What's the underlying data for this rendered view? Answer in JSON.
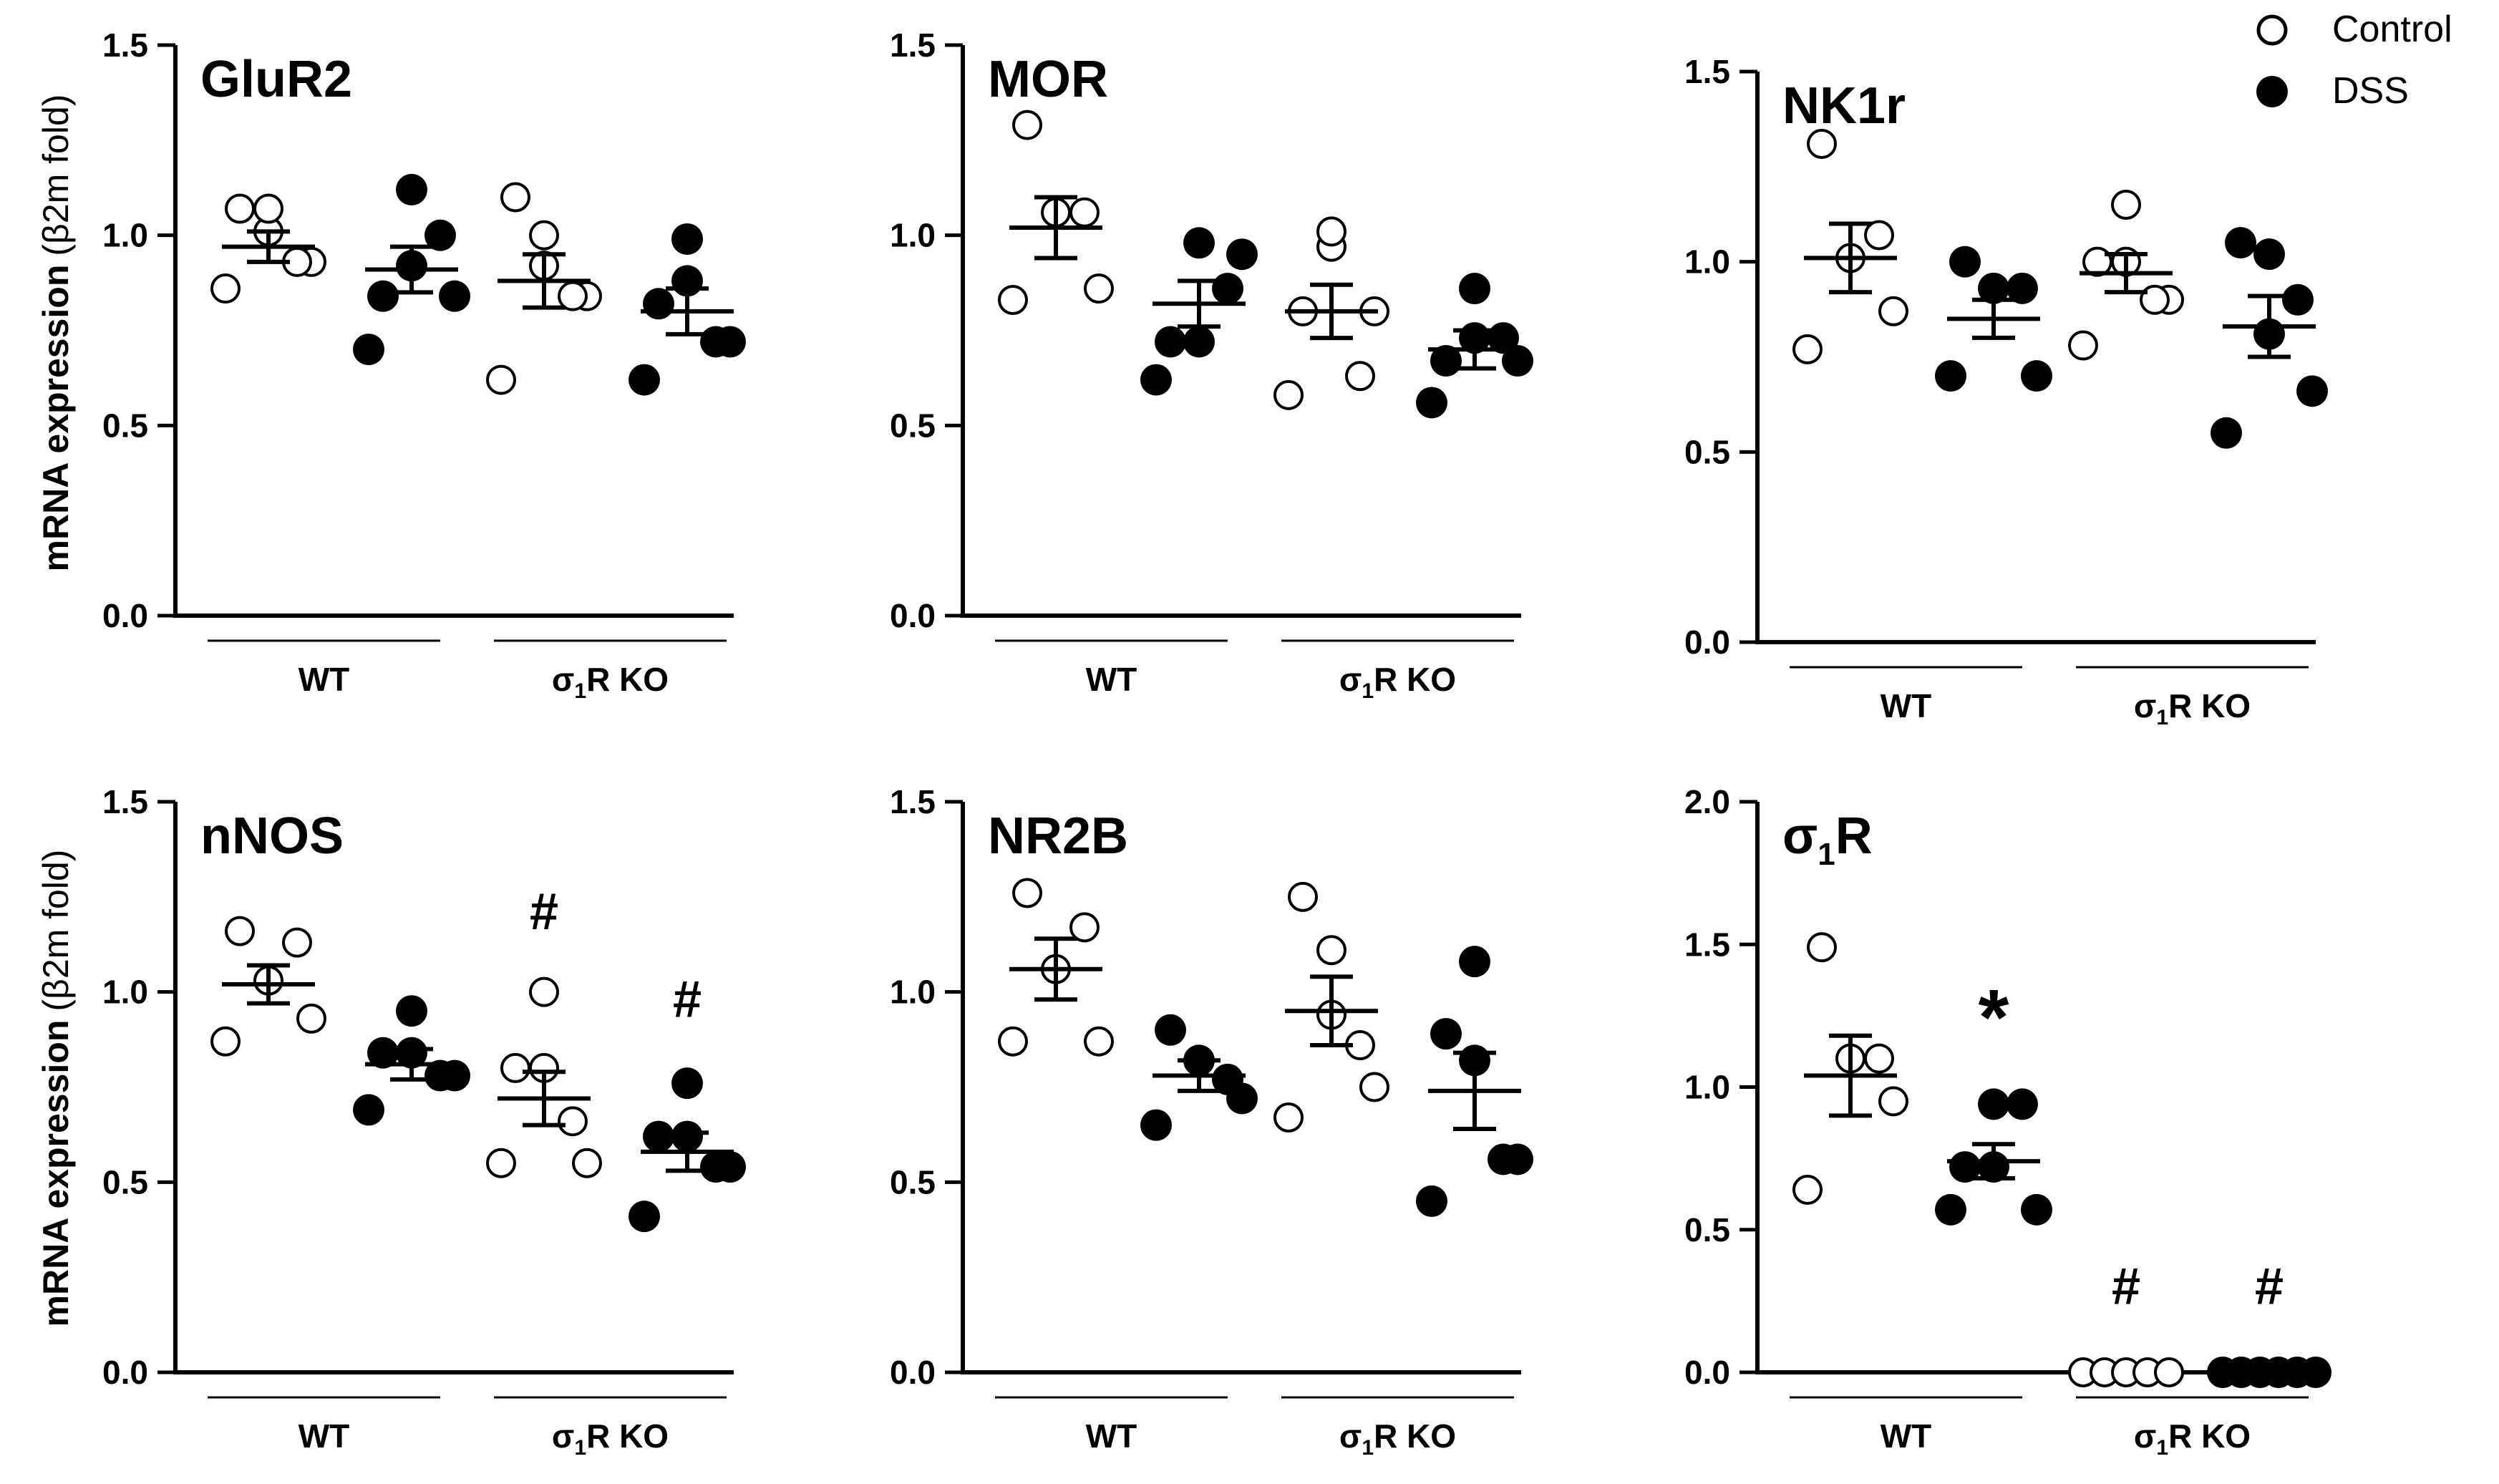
{
  "figure": {
    "ylabel_main": "mRNA expression",
    "ylabel_unit": "(β2m fold)",
    "legend": [
      {
        "label": "Control",
        "marker": "open-circle"
      },
      {
        "label": "DSS",
        "marker": "filled-circle"
      }
    ],
    "groups": [
      "WT",
      "σ1R KO"
    ],
    "marker_colors": {
      "open_fill": "#ffffff",
      "filled_fill": "#000000",
      "stroke": "#000000"
    }
  },
  "chart_data": [
    {
      "type": "scatter",
      "title": "GluR2",
      "ylim": [
        0,
        1.5
      ],
      "yticks": [
        "0.0",
        "0.5",
        "1.0",
        "1.5"
      ],
      "series": [
        {
          "name": "WT Control",
          "values": [
            0.86,
            0.93,
            1.01,
            1.07,
            1.07,
            0.93
          ],
          "mean": 0.97,
          "sem": 0.04
        },
        {
          "name": "WT DSS",
          "values": [
            0.7,
            0.84,
            0.92,
            1.12,
            0.84,
            1.0
          ],
          "mean": 0.91,
          "sem": 0.06
        },
        {
          "name": "σ1R KO Control",
          "values": [
            0.62,
            0.84,
            0.92,
            1.0,
            1.1,
            0.84
          ],
          "mean": 0.88,
          "sem": 0.07
        },
        {
          "name": "σ1R KO DSS",
          "values": [
            0.62,
            0.72,
            0.88,
            0.99,
            0.82,
            0.72
          ],
          "mean": 0.8,
          "sem": 0.06
        }
      ],
      "annotations": []
    },
    {
      "type": "scatter",
      "title": "MOR",
      "ylim": [
        0,
        1.5
      ],
      "yticks": [
        "0.0",
        "0.5",
        "1.0",
        "1.5"
      ],
      "series": [
        {
          "name": "WT Control",
          "values": [
            0.83,
            0.86,
            1.06,
            1.29,
            1.06
          ],
          "mean": 1.02,
          "sem": 0.08
        },
        {
          "name": "WT DSS",
          "values": [
            0.62,
            0.95,
            0.72,
            0.98,
            0.72,
            0.86
          ],
          "mean": 0.82,
          "sem": 0.06
        },
        {
          "name": "σ1R KO Control",
          "values": [
            0.58,
            0.8,
            0.97,
            1.01,
            0.8,
            0.63
          ],
          "mean": 0.8,
          "sem": 0.07
        },
        {
          "name": "σ1R KO DSS",
          "values": [
            0.56,
            0.67,
            0.73,
            0.86,
            0.67,
            0.73
          ],
          "mean": 0.7,
          "sem": 0.05
        }
      ],
      "annotations": []
    },
    {
      "type": "scatter",
      "title": "NK1r",
      "ylim": [
        0,
        1.5
      ],
      "yticks": [
        "0.0",
        "0.5",
        "1.0",
        "1.5"
      ],
      "series": [
        {
          "name": "WT Control",
          "values": [
            0.77,
            0.87,
            1.01,
            1.31,
            1.07
          ],
          "mean": 1.01,
          "sem": 0.09
        },
        {
          "name": "WT DSS",
          "values": [
            0.7,
            0.7,
            0.93,
            1.0,
            0.93
          ],
          "mean": 0.85,
          "sem": 0.05
        },
        {
          "name": "σ1R KO Control",
          "values": [
            0.78,
            0.9,
            1.0,
            1.15,
            1.0,
            0.9
          ],
          "mean": 0.97,
          "sem": 0.05
        },
        {
          "name": "σ1R KO DSS",
          "values": [
            0.55,
            0.66,
            0.81,
            1.02,
            1.05,
            0.9
          ],
          "mean": 0.83,
          "sem": 0.08
        }
      ],
      "annotations": []
    },
    {
      "type": "scatter",
      "title": "nNOS",
      "ylim": [
        0,
        1.5
      ],
      "yticks": [
        "0.0",
        "0.5",
        "1.0",
        "1.5"
      ],
      "series": [
        {
          "name": "WT Control",
          "values": [
            0.87,
            0.93,
            1.03,
            1.16,
            1.13
          ],
          "mean": 1.02,
          "sem": 0.05
        },
        {
          "name": "WT DSS",
          "values": [
            0.69,
            0.78,
            0.84,
            0.95,
            0.84,
            0.78
          ],
          "mean": 0.81,
          "sem": 0.04
        },
        {
          "name": "σ1R KO Control",
          "values": [
            0.55,
            0.55,
            0.8,
            1.0,
            0.8,
            0.66
          ],
          "mean": 0.72,
          "sem": 0.07
        },
        {
          "name": "σ1R KO DSS",
          "values": [
            0.41,
            0.54,
            0.62,
            0.76,
            0.62,
            0.54
          ],
          "mean": 0.58,
          "sem": 0.05
        }
      ],
      "annotations": [
        {
          "group": 2,
          "text": "#",
          "value": 1.21
        },
        {
          "group": 3,
          "text": "#",
          "value": 0.98
        }
      ]
    },
    {
      "type": "scatter",
      "title": "NR2B",
      "ylim": [
        0,
        1.5
      ],
      "yticks": [
        "0.0",
        "0.5",
        "1.0",
        "1.5"
      ],
      "series": [
        {
          "name": "WT Control",
          "values": [
            0.87,
            0.87,
            1.06,
            1.26,
            1.17
          ],
          "mean": 1.06,
          "sem": 0.08
        },
        {
          "name": "WT DSS",
          "values": [
            0.65,
            0.72,
            0.82,
            0.9,
            0.77
          ],
          "mean": 0.78,
          "sem": 0.04
        },
        {
          "name": "σ1R KO Control",
          "values": [
            0.67,
            0.75,
            0.94,
            1.11,
            1.25,
            0.86
          ],
          "mean": 0.95,
          "sem": 0.09
        },
        {
          "name": "σ1R KO DSS",
          "values": [
            0.45,
            0.56,
            0.82,
            1.08,
            0.89,
            0.56
          ],
          "mean": 0.74,
          "sem": 0.1
        }
      ],
      "annotations": []
    },
    {
      "type": "scatter",
      "title": "σ1R",
      "ylim": [
        0,
        2.0
      ],
      "yticks": [
        "0.0",
        "0.5",
        "1.0",
        "1.5",
        "2.0"
      ],
      "series": [
        {
          "name": "WT Control",
          "values": [
            0.64,
            0.95,
            1.1,
            1.49,
            1.1
          ],
          "mean": 1.04,
          "sem": 0.14
        },
        {
          "name": "WT DSS",
          "values": [
            0.57,
            0.57,
            0.72,
            0.94,
            0.72,
            0.94
          ],
          "mean": 0.74,
          "sem": 0.06
        },
        {
          "name": "σ1R KO Control",
          "values": [
            0.0,
            0.0,
            0.0,
            0.0,
            0.0
          ],
          "mean": 0.0,
          "sem": 0.0
        },
        {
          "name": "σ1R KO DSS",
          "values": [
            0.0,
            0.0,
            0.0,
            0.0,
            0.0,
            0.0
          ],
          "mean": 0.0,
          "sem": 0.0
        }
      ],
      "annotations": [
        {
          "group": 1,
          "text": "*",
          "value": 1.3
        },
        {
          "group": 2,
          "text": "#",
          "value": 0.3
        },
        {
          "group": 3,
          "text": "#",
          "value": 0.3
        }
      ]
    }
  ]
}
